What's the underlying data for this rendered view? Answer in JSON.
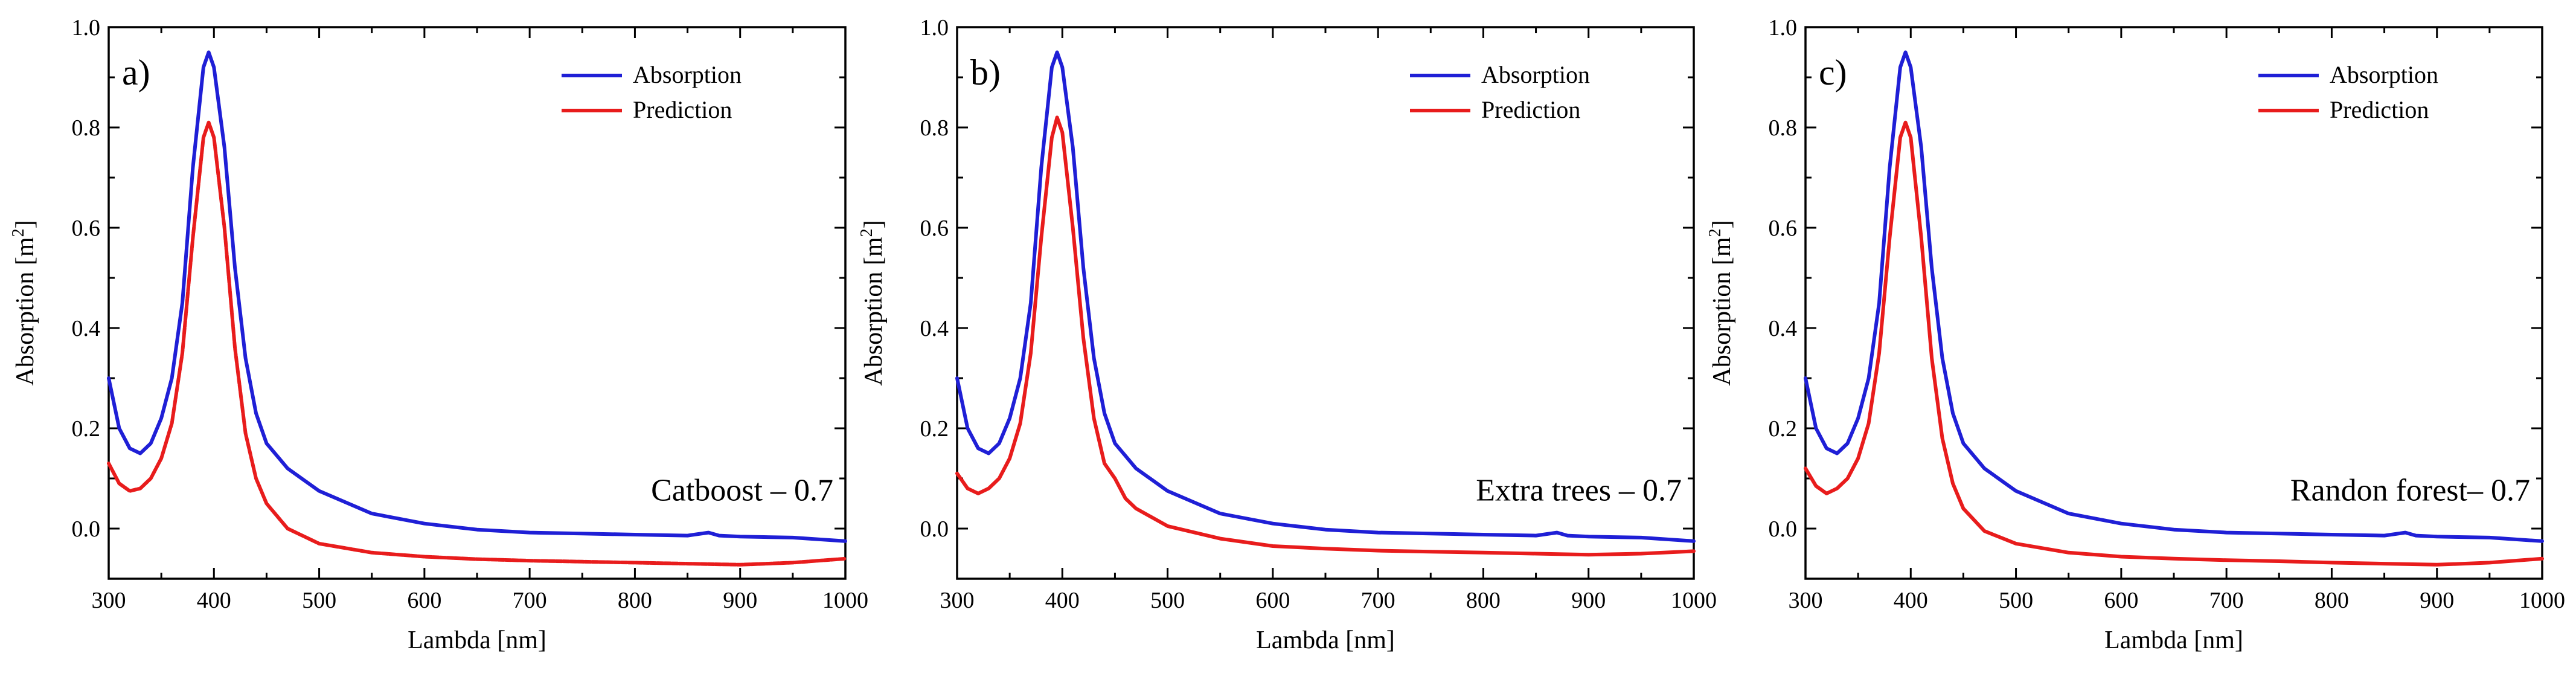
{
  "chart_data": [
    {
      "type": "line",
      "panel_label": "a)",
      "annotation": "Catboost – 0.7",
      "xlabel": "Lambda [nm]",
      "ylabel": "Absorption [m",
      "ylabel_sup": "2",
      "ylabel_end": "]",
      "xlim": [
        300,
        1000
      ],
      "ylim": [
        -0.1,
        1.0
      ],
      "xticks": [
        300,
        400,
        500,
        600,
        700,
        800,
        900,
        1000
      ],
      "yticks": [
        0.0,
        0.2,
        0.4,
        0.6,
        0.8,
        1.0
      ],
      "legend_position": "top-right",
      "series": [
        {
          "name": "Absorption",
          "color": "#1f1fd6",
          "step": false,
          "x": [
            300,
            310,
            320,
            330,
            340,
            350,
            360,
            370,
            380,
            390,
            395,
            400,
            410,
            420,
            430,
            440,
            450,
            470,
            500,
            550,
            600,
            650,
            700,
            750,
            800,
            850,
            870,
            880,
            900,
            950,
            1000
          ],
          "y": [
            0.3,
            0.2,
            0.16,
            0.15,
            0.17,
            0.22,
            0.3,
            0.45,
            0.72,
            0.92,
            0.95,
            0.92,
            0.76,
            0.52,
            0.34,
            0.23,
            0.17,
            0.12,
            0.075,
            0.03,
            0.01,
            -0.002,
            -0.008,
            -0.01,
            -0.012,
            -0.014,
            -0.008,
            -0.014,
            -0.016,
            -0.018,
            -0.025
          ]
        },
        {
          "name": "Prediction",
          "color": "#e81c1c",
          "step": true,
          "x": [
            300,
            310,
            320,
            330,
            340,
            350,
            360,
            370,
            380,
            390,
            395,
            400,
            410,
            420,
            430,
            440,
            450,
            470,
            500,
            550,
            600,
            650,
            700,
            750,
            800,
            850,
            900,
            950,
            1000
          ],
          "y": [
            0.13,
            0.09,
            0.075,
            0.08,
            0.1,
            0.14,
            0.21,
            0.35,
            0.58,
            0.78,
            0.81,
            0.78,
            0.6,
            0.36,
            0.19,
            0.1,
            0.05,
            0.0,
            -0.03,
            -0.048,
            -0.056,
            -0.061,
            -0.064,
            -0.066,
            -0.068,
            -0.07,
            -0.072,
            -0.068,
            -0.06
          ]
        }
      ]
    },
    {
      "type": "line",
      "panel_label": "b)",
      "annotation": "Extra trees – 0.7",
      "xlabel": "Lambda [nm]",
      "ylabel": "Absorption [m",
      "ylabel_sup": "2",
      "ylabel_end": "]",
      "xlim": [
        300,
        1000
      ],
      "ylim": [
        -0.1,
        1.0
      ],
      "xticks": [
        300,
        400,
        500,
        600,
        700,
        800,
        900,
        1000
      ],
      "yticks": [
        0.0,
        0.2,
        0.4,
        0.6,
        0.8,
        1.0
      ],
      "legend_position": "top-right",
      "series": [
        {
          "name": "Absorption",
          "color": "#1f1fd6",
          "step": false,
          "x": [
            300,
            310,
            320,
            330,
            340,
            350,
            360,
            370,
            380,
            390,
            395,
            400,
            410,
            420,
            430,
            440,
            450,
            470,
            500,
            550,
            600,
            650,
            700,
            750,
            800,
            850,
            870,
            880,
            900,
            950,
            1000
          ],
          "y": [
            0.3,
            0.2,
            0.16,
            0.15,
            0.17,
            0.22,
            0.3,
            0.45,
            0.72,
            0.92,
            0.95,
            0.92,
            0.76,
            0.52,
            0.34,
            0.23,
            0.17,
            0.12,
            0.075,
            0.03,
            0.01,
            -0.002,
            -0.008,
            -0.01,
            -0.012,
            -0.014,
            -0.008,
            -0.014,
            -0.016,
            -0.018,
            -0.025
          ]
        },
        {
          "name": "Prediction",
          "color": "#e81c1c",
          "step": false,
          "x": [
            300,
            310,
            320,
            330,
            340,
            350,
            360,
            370,
            380,
            390,
            395,
            400,
            410,
            420,
            430,
            440,
            450,
            460,
            470,
            500,
            550,
            600,
            650,
            700,
            750,
            800,
            850,
            900,
            950,
            1000
          ],
          "y": [
            0.11,
            0.08,
            0.07,
            0.08,
            0.1,
            0.14,
            0.21,
            0.35,
            0.58,
            0.78,
            0.82,
            0.79,
            0.6,
            0.38,
            0.22,
            0.13,
            0.1,
            0.06,
            0.04,
            0.005,
            -0.02,
            -0.035,
            -0.04,
            -0.044,
            -0.046,
            -0.048,
            -0.05,
            -0.052,
            -0.05,
            -0.045
          ]
        }
      ]
    },
    {
      "type": "line",
      "panel_label": "c)",
      "annotation": "Randon forest– 0.7",
      "xlabel": "Lambda [nm]",
      "ylabel": "Absorption [m",
      "ylabel_sup": "2",
      "ylabel_end": "]",
      "xlim": [
        300,
        1000
      ],
      "ylim": [
        -0.1,
        1.0
      ],
      "xticks": [
        300,
        400,
        500,
        600,
        700,
        800,
        900,
        1000
      ],
      "yticks": [
        0.0,
        0.2,
        0.4,
        0.6,
        0.8,
        1.0
      ],
      "legend_position": "top-right",
      "series": [
        {
          "name": "Absorption",
          "color": "#1f1fd6",
          "step": false,
          "x": [
            300,
            310,
            320,
            330,
            340,
            350,
            360,
            370,
            380,
            390,
            395,
            400,
            410,
            420,
            430,
            440,
            450,
            470,
            500,
            550,
            600,
            650,
            700,
            750,
            800,
            850,
            870,
            880,
            900,
            950,
            1000
          ],
          "y": [
            0.3,
            0.2,
            0.16,
            0.15,
            0.17,
            0.22,
            0.3,
            0.45,
            0.72,
            0.92,
            0.95,
            0.92,
            0.76,
            0.52,
            0.34,
            0.23,
            0.17,
            0.12,
            0.075,
            0.03,
            0.01,
            -0.002,
            -0.008,
            -0.01,
            -0.012,
            -0.014,
            -0.008,
            -0.014,
            -0.016,
            -0.018,
            -0.025
          ]
        },
        {
          "name": "Prediction",
          "color": "#e81c1c",
          "step": false,
          "x": [
            300,
            310,
            320,
            330,
            340,
            350,
            360,
            370,
            380,
            390,
            395,
            400,
            410,
            420,
            430,
            440,
            450,
            470,
            500,
            550,
            600,
            650,
            700,
            750,
            800,
            850,
            900,
            950,
            1000
          ],
          "y": [
            0.12,
            0.085,
            0.07,
            0.08,
            0.1,
            0.14,
            0.21,
            0.35,
            0.58,
            0.78,
            0.81,
            0.78,
            0.58,
            0.34,
            0.18,
            0.09,
            0.04,
            -0.005,
            -0.03,
            -0.048,
            -0.056,
            -0.06,
            -0.063,
            -0.065,
            -0.068,
            -0.07,
            -0.072,
            -0.068,
            -0.06
          ]
        }
      ]
    }
  ]
}
